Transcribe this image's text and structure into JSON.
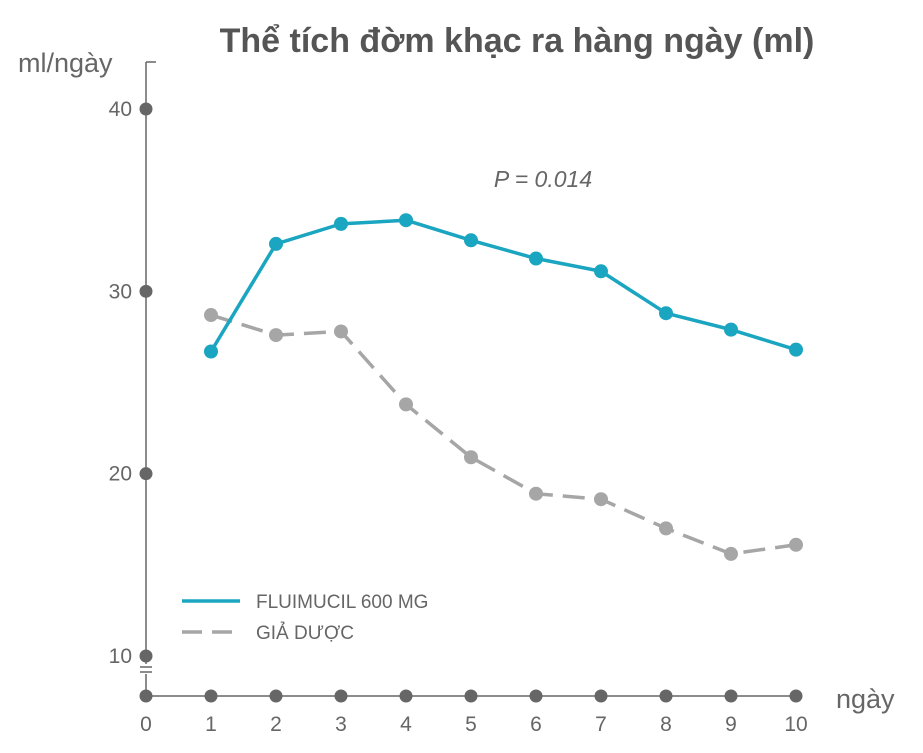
{
  "chart_data": {
    "type": "line",
    "title": "Thể tích đờm khạc ra hàng ngày (ml)",
    "ylabel": "ml/ngày",
    "xlabel": "ngày",
    "annotation": "P = 0.014",
    "x": [
      1,
      2,
      3,
      4,
      5,
      6,
      7,
      8,
      9,
      10
    ],
    "x_ticks": [
      "0",
      "1",
      "2",
      "3",
      "4",
      "5",
      "6",
      "7",
      "8",
      "9",
      "10"
    ],
    "y_ticks": [
      "10",
      "20",
      "30",
      "40"
    ],
    "xlim": [
      0,
      10
    ],
    "ylim": [
      10,
      40
    ],
    "y_axis_break": true,
    "grid": false,
    "legend_position": "bottom-left",
    "series": [
      {
        "name": "FLUIMUCIL 600 MG",
        "style": "solid",
        "color": "#1aa5c0",
        "values": [
          26.7,
          32.6,
          33.7,
          33.9,
          32.8,
          31.8,
          31.1,
          28.8,
          27.9,
          26.8
        ]
      },
      {
        "name": "GIẢ DƯỢC",
        "style": "dashed",
        "color": "#a6a6a6",
        "values": [
          28.7,
          27.6,
          27.8,
          23.8,
          20.9,
          18.9,
          18.6,
          17.0,
          15.6,
          16.1
        ]
      }
    ],
    "axis_color": "#666666"
  }
}
